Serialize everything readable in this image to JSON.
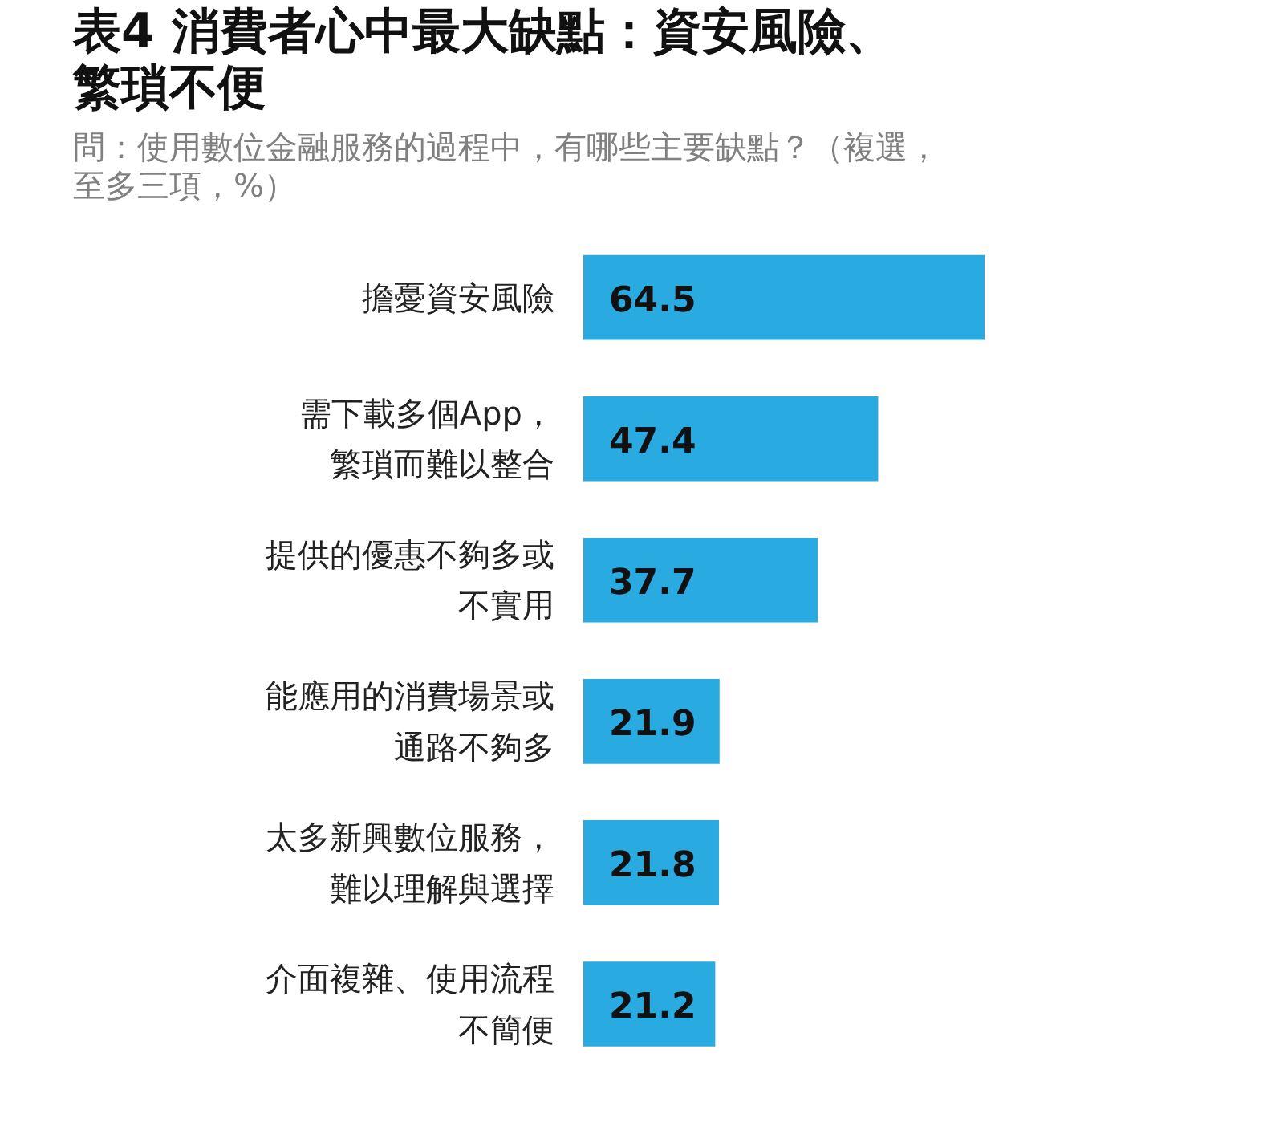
{
  "chart_data": {
    "type": "bar",
    "orientation": "horizontal",
    "title": "表4 消費者心中最大缺點：資安風險、繁瑣不便",
    "subtitle": "問：使用數位金融服務的過程中，有哪些主要缺點？（複選，至多三項，%）",
    "categories": [
      "擔憂資安風險",
      "需下載多個App，繁瑣而難以整合",
      "提供的優惠不夠多或不實用",
      "能應用的消費場景或通路不夠多",
      "太多新興數位服務，難以理解與選擇",
      "介面複雜、使用流程不簡便"
    ],
    "values": [
      64.5,
      47.4,
      37.7,
      21.9,
      21.8,
      21.2
    ],
    "color": "#29abe2",
    "data_labels": true
  }
}
